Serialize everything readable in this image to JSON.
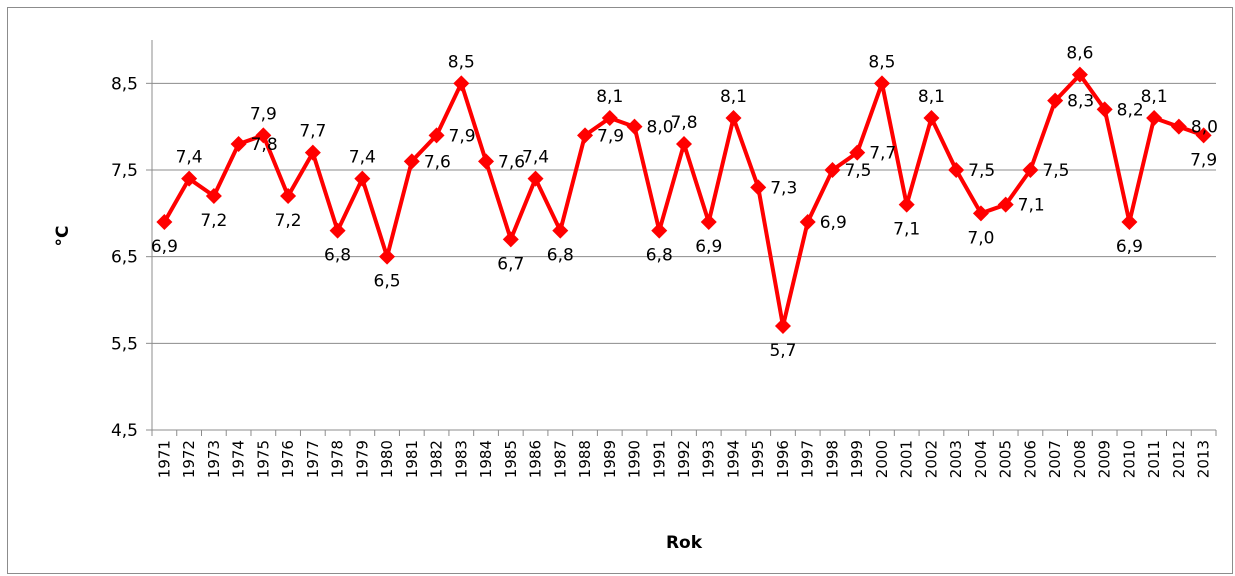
{
  "chart_data": {
    "type": "line",
    "title": "",
    "xlabel": "Rok",
    "ylabel": "°C",
    "ylim": [
      4.5,
      9.0
    ],
    "yticks": [
      4.5,
      5.5,
      6.5,
      7.5,
      8.5
    ],
    "ytick_labels": [
      "4,5",
      "5,5",
      "6,5",
      "7,5",
      "8,5"
    ],
    "grid": "horizontal",
    "legend": "none",
    "series_color": "#ff0000",
    "categories": [
      "1971",
      "1972",
      "1973",
      "1974",
      "1975",
      "1976",
      "1977",
      "1978",
      "1979",
      "1980",
      "1981",
      "1982",
      "1983",
      "1984",
      "1985",
      "1986",
      "1987",
      "1988",
      "1989",
      "1990",
      "1991",
      "1992",
      "1993",
      "1994",
      "1995",
      "1996",
      "1997",
      "1998",
      "1999",
      "2000",
      "2001",
      "2002",
      "2003",
      "2004",
      "2005",
      "2006",
      "2007",
      "2008",
      "2009",
      "2010",
      "2011",
      "2012",
      "2013"
    ],
    "values": [
      6.9,
      7.4,
      7.2,
      7.8,
      7.9,
      7.2,
      7.7,
      6.8,
      7.4,
      6.5,
      7.6,
      7.9,
      8.5,
      7.6,
      6.7,
      7.4,
      6.8,
      7.9,
      8.1,
      8.0,
      6.8,
      7.8,
      6.9,
      8.1,
      7.3,
      5.7,
      6.9,
      7.5,
      7.7,
      8.5,
      7.1,
      8.1,
      7.5,
      7.0,
      7.1,
      7.5,
      8.3,
      8.6,
      8.2,
      6.9,
      8.1,
      8.0,
      7.9
    ],
    "data_labels": [
      "6,9",
      "7,4",
      "7,2",
      "7,8",
      "7,9",
      "7,2",
      "7,7",
      "6,8",
      "7,4",
      "6,5",
      "7,6",
      "7,9",
      "8,5",
      "7,6",
      "6,7",
      "7,4",
      "6,8",
      "7,9",
      "8,1",
      "8,0",
      "6,8",
      "7,8",
      "6,9",
      "8,1",
      "7,3",
      "5,7",
      "6,9",
      "7,5",
      "7,7",
      "8,5",
      "7,1",
      "8,1",
      "7,5",
      "7,0",
      "7,1",
      "7,5",
      "8,3",
      "8,6",
      "8,2",
      "6,9",
      "8,1",
      "8,0",
      "7,9"
    ]
  }
}
